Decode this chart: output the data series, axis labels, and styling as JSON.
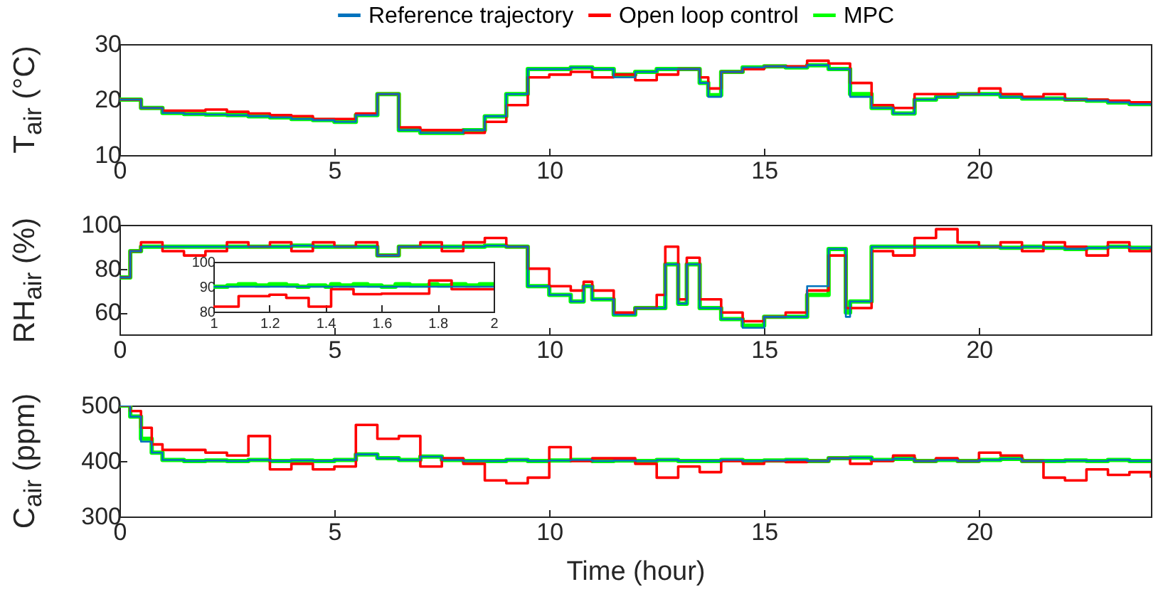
{
  "chart_data": [
    {
      "type": "step",
      "ylabel": "T$_{air}$ (°C)",
      "legend": "top",
      "xlim": [
        0,
        24
      ],
      "xticks": [
        0,
        5,
        10,
        15,
        20
      ],
      "ylim": [
        10,
        30
      ],
      "yticks": [
        10,
        20,
        30
      ],
      "x": [
        0,
        0.5,
        1,
        1.5,
        2,
        2.5,
        3,
        3.5,
        4,
        4.5,
        5,
        5.5,
        6,
        6.5,
        7,
        7.5,
        8,
        8.5,
        9,
        9.5,
        10,
        10.5,
        11,
        11.5,
        12,
        12.5,
        13,
        13.5,
        13.7,
        14,
        14.5,
        15,
        15.5,
        16,
        16.5,
        17,
        17.5,
        18,
        18.5,
        19,
        19.5,
        20,
        20.5,
        21,
        21.5,
        22,
        22.5,
        23,
        23.5,
        24
      ],
      "series": [
        {
          "name": "Reference trajectory",
          "color": "#0072bd",
          "values": [
            20,
            18.5,
            17.6,
            17.4,
            17.3,
            17.2,
            17,
            16.8,
            16.5,
            16.3,
            16,
            17.2,
            21,
            14.5,
            14,
            14,
            14.5,
            17,
            21,
            25.5,
            25.5,
            25.8,
            25.5,
            24,
            25,
            25.5,
            25.5,
            23,
            20.5,
            25,
            25.8,
            26,
            25.8,
            26.2,
            25.5,
            20.5,
            18.5,
            17.5,
            20,
            20.5,
            21,
            21,
            20.5,
            20.2,
            20.2,
            20,
            19.8,
            19.5,
            19.2,
            19
          ]
        },
        {
          "name": "Open loop control",
          "color": "#ff0000",
          "values": [
            20,
            18.5,
            18,
            18,
            18.2,
            17.8,
            17.5,
            17.2,
            17,
            16.5,
            16.5,
            17.5,
            21,
            15,
            14.5,
            14.5,
            14,
            16,
            19,
            24,
            24.5,
            25,
            24,
            24.5,
            23.5,
            24.5,
            25.5,
            24,
            22,
            25,
            25.5,
            26,
            26,
            27,
            26.5,
            23,
            19,
            18.5,
            21,
            21,
            21,
            22,
            21,
            20.5,
            21,
            20,
            20,
            19.8,
            19.5,
            19
          ]
        },
        {
          "name": "MPC",
          "color": "#00ff00",
          "values": [
            20,
            18.5,
            17.6,
            17.4,
            17.3,
            17.2,
            17,
            16.8,
            16.5,
            16.3,
            16,
            17.2,
            21,
            14.5,
            14,
            14,
            14.5,
            17,
            21,
            25.5,
            25.5,
            25.8,
            25.5,
            24.5,
            25,
            25.5,
            25.5,
            23,
            20.8,
            25,
            25.8,
            26,
            25.8,
            26.2,
            25.5,
            21,
            18.5,
            17.5,
            20,
            20.5,
            21,
            21,
            20.5,
            20.2,
            20.2,
            20,
            19.8,
            19.5,
            19.2,
            19
          ]
        }
      ]
    },
    {
      "type": "step",
      "ylabel": "RH$_{air}$ (%)",
      "xlim": [
        0,
        24
      ],
      "xticks": [
        0,
        5,
        10,
        15,
        20
      ],
      "ylim": [
        50,
        100
      ],
      "yticks": [
        60,
        80,
        100
      ],
      "x": [
        0,
        0.25,
        0.5,
        1,
        1.5,
        2,
        2.5,
        3,
        3.5,
        4,
        4.5,
        5,
        5.5,
        6,
        6.5,
        7,
        7.5,
        8,
        8.5,
        9,
        9.5,
        10,
        10.5,
        10.8,
        11,
        11.5,
        12,
        12.5,
        12.7,
        13,
        13.2,
        13.5,
        14,
        14.5,
        15,
        15.5,
        16,
        16.5,
        16.9,
        17,
        17.5,
        18,
        18.5,
        19,
        19.5,
        20,
        20.5,
        21,
        21.5,
        22,
        22.5,
        23,
        23.5,
        24
      ],
      "series": [
        {
          "color": "#0072bd",
          "values": [
            76,
            88,
            90,
            90,
            90,
            90,
            90,
            90,
            90,
            90.5,
            90,
            90,
            90,
            86,
            90,
            90,
            90,
            90,
            90.5,
            90,
            72,
            68,
            65,
            72,
            66,
            59,
            62,
            62,
            82,
            64,
            82,
            62,
            57,
            53,
            58,
            58,
            72,
            89,
            58,
            65,
            90,
            90,
            90,
            90,
            90,
            90,
            89.5,
            90,
            89.5,
            89,
            89.5,
            90,
            89.5,
            90
          ]
        },
        {
          "color": "#ff0000",
          "values": [
            76,
            88,
            92,
            88,
            86,
            88,
            92,
            90,
            92,
            88,
            92,
            90,
            92,
            86,
            90,
            92,
            88,
            92,
            94,
            90,
            80,
            72,
            70,
            74,
            70,
            60,
            62,
            68,
            90,
            66,
            85,
            66,
            60,
            56,
            58,
            60,
            70,
            86,
            62,
            62,
            88,
            86,
            94,
            98,
            92,
            90,
            92,
            88,
            92,
            90,
            86,
            92,
            88,
            90
          ]
        },
        {
          "color": "#00ff00",
          "values": [
            76,
            88,
            90,
            90,
            90,
            90,
            90,
            90,
            90,
            90.5,
            90,
            90,
            90,
            86,
            90,
            90,
            90,
            90,
            90.5,
            90,
            72,
            68,
            65,
            72,
            66,
            59,
            62,
            62,
            82,
            64,
            82,
            62,
            57,
            54,
            58,
            58,
            68,
            89,
            60,
            65,
            90,
            90,
            90,
            90,
            90,
            90,
            89.5,
            90,
            89.5,
            89,
            89.5,
            90,
            89.5,
            90
          ]
        }
      ]
    },
    {
      "type": "step",
      "xlim": [
        1,
        2
      ],
      "xticks": [
        1,
        1.2,
        1.4,
        1.6,
        1.8,
        2
      ],
      "ylim": [
        80,
        100
      ],
      "yticks": [
        80,
        90,
        100
      ],
      "x": [
        1,
        1.05,
        1.09,
        1.15,
        1.2,
        1.26,
        1.3,
        1.34,
        1.4,
        1.42,
        1.45,
        1.5,
        1.55,
        1.6,
        1.65,
        1.7,
        1.77,
        1.8,
        1.85,
        1.9,
        1.95,
        2
      ],
      "series": [
        {
          "color": "#0072bd",
          "values": [
            90,
            90,
            90,
            90,
            90,
            90,
            90,
            90,
            90,
            90,
            90,
            90,
            90,
            90,
            90,
            90,
            90,
            90,
            90,
            90,
            90,
            90
          ]
        },
        {
          "color": "#ff0000",
          "values": [
            82,
            82,
            86.2,
            86.2,
            86.8,
            85.5,
            85.5,
            82,
            82,
            89,
            89,
            87,
            87,
            87.2,
            87.2,
            87.2,
            92.5,
            92.5,
            89,
            89,
            89,
            89
          ]
        },
        {
          "color": "#00ff00",
          "values": [
            90,
            90.5,
            91,
            90.5,
            91,
            90.5,
            90,
            90.5,
            90,
            91,
            90.5,
            91,
            90.5,
            90,
            91,
            90.5,
            91,
            90.5,
            91,
            90.5,
            91,
            91
          ]
        }
      ]
    },
    {
      "type": "step",
      "ylabel": "C$_{air}$ (ppm)",
      "xlabel": "Time (hour)",
      "xlim": [
        0,
        24
      ],
      "xticks": [
        0,
        5,
        10,
        15,
        20
      ],
      "ylim": [
        300,
        500
      ],
      "yticks": [
        300,
        400,
        500
      ],
      "x": [
        0,
        0.25,
        0.5,
        0.75,
        1,
        1.5,
        2,
        2.5,
        3,
        3.5,
        4,
        4.5,
        5,
        5.5,
        6,
        6.5,
        7,
        7.5,
        8,
        8.5,
        9,
        9.5,
        10,
        10.5,
        11,
        11.5,
        12,
        12.5,
        13,
        13.5,
        14,
        14.5,
        15,
        15.5,
        16,
        16.5,
        17,
        17.5,
        18,
        18.5,
        19,
        19.5,
        20,
        20.5,
        21,
        21.5,
        22,
        22.5,
        23,
        23.5,
        24
      ],
      "series": [
        {
          "color": "#0072bd",
          "values": [
            500,
            480,
            435,
            415,
            402,
            400,
            401,
            400,
            402,
            400,
            401,
            400,
            402,
            412,
            405,
            402,
            408,
            402,
            400,
            400,
            402,
            400,
            401,
            402,
            400,
            401,
            400,
            402,
            400,
            400,
            402,
            400,
            401,
            402,
            400,
            405,
            406,
            402,
            404,
            400,
            402,
            400,
            402,
            404,
            400,
            400,
            401,
            400,
            402,
            400,
            401
          ]
        },
        {
          "color": "#ff0000",
          "values": [
            500,
            490,
            460,
            430,
            420,
            420,
            415,
            410,
            445,
            385,
            395,
            385,
            390,
            465,
            440,
            445,
            390,
            405,
            395,
            365,
            360,
            370,
            425,
            400,
            405,
            405,
            395,
            370,
            390,
            380,
            400,
            395,
            400,
            398,
            400,
            405,
            395,
            400,
            410,
            400,
            405,
            400,
            415,
            410,
            400,
            370,
            365,
            385,
            375,
            380,
            370
          ]
        },
        {
          "color": "#00ff00",
          "values": [
            500,
            480,
            440,
            415,
            402,
            400,
            401,
            400,
            402,
            400,
            401,
            400,
            402,
            412,
            405,
            402,
            408,
            402,
            400,
            400,
            402,
            400,
            401,
            402,
            400,
            401,
            400,
            402,
            400,
            400,
            402,
            400,
            401,
            402,
            400,
            405,
            406,
            402,
            404,
            400,
            402,
            400,
            402,
            404,
            400,
            400,
            401,
            400,
            402,
            400,
            401
          ]
        }
      ]
    }
  ]
}
